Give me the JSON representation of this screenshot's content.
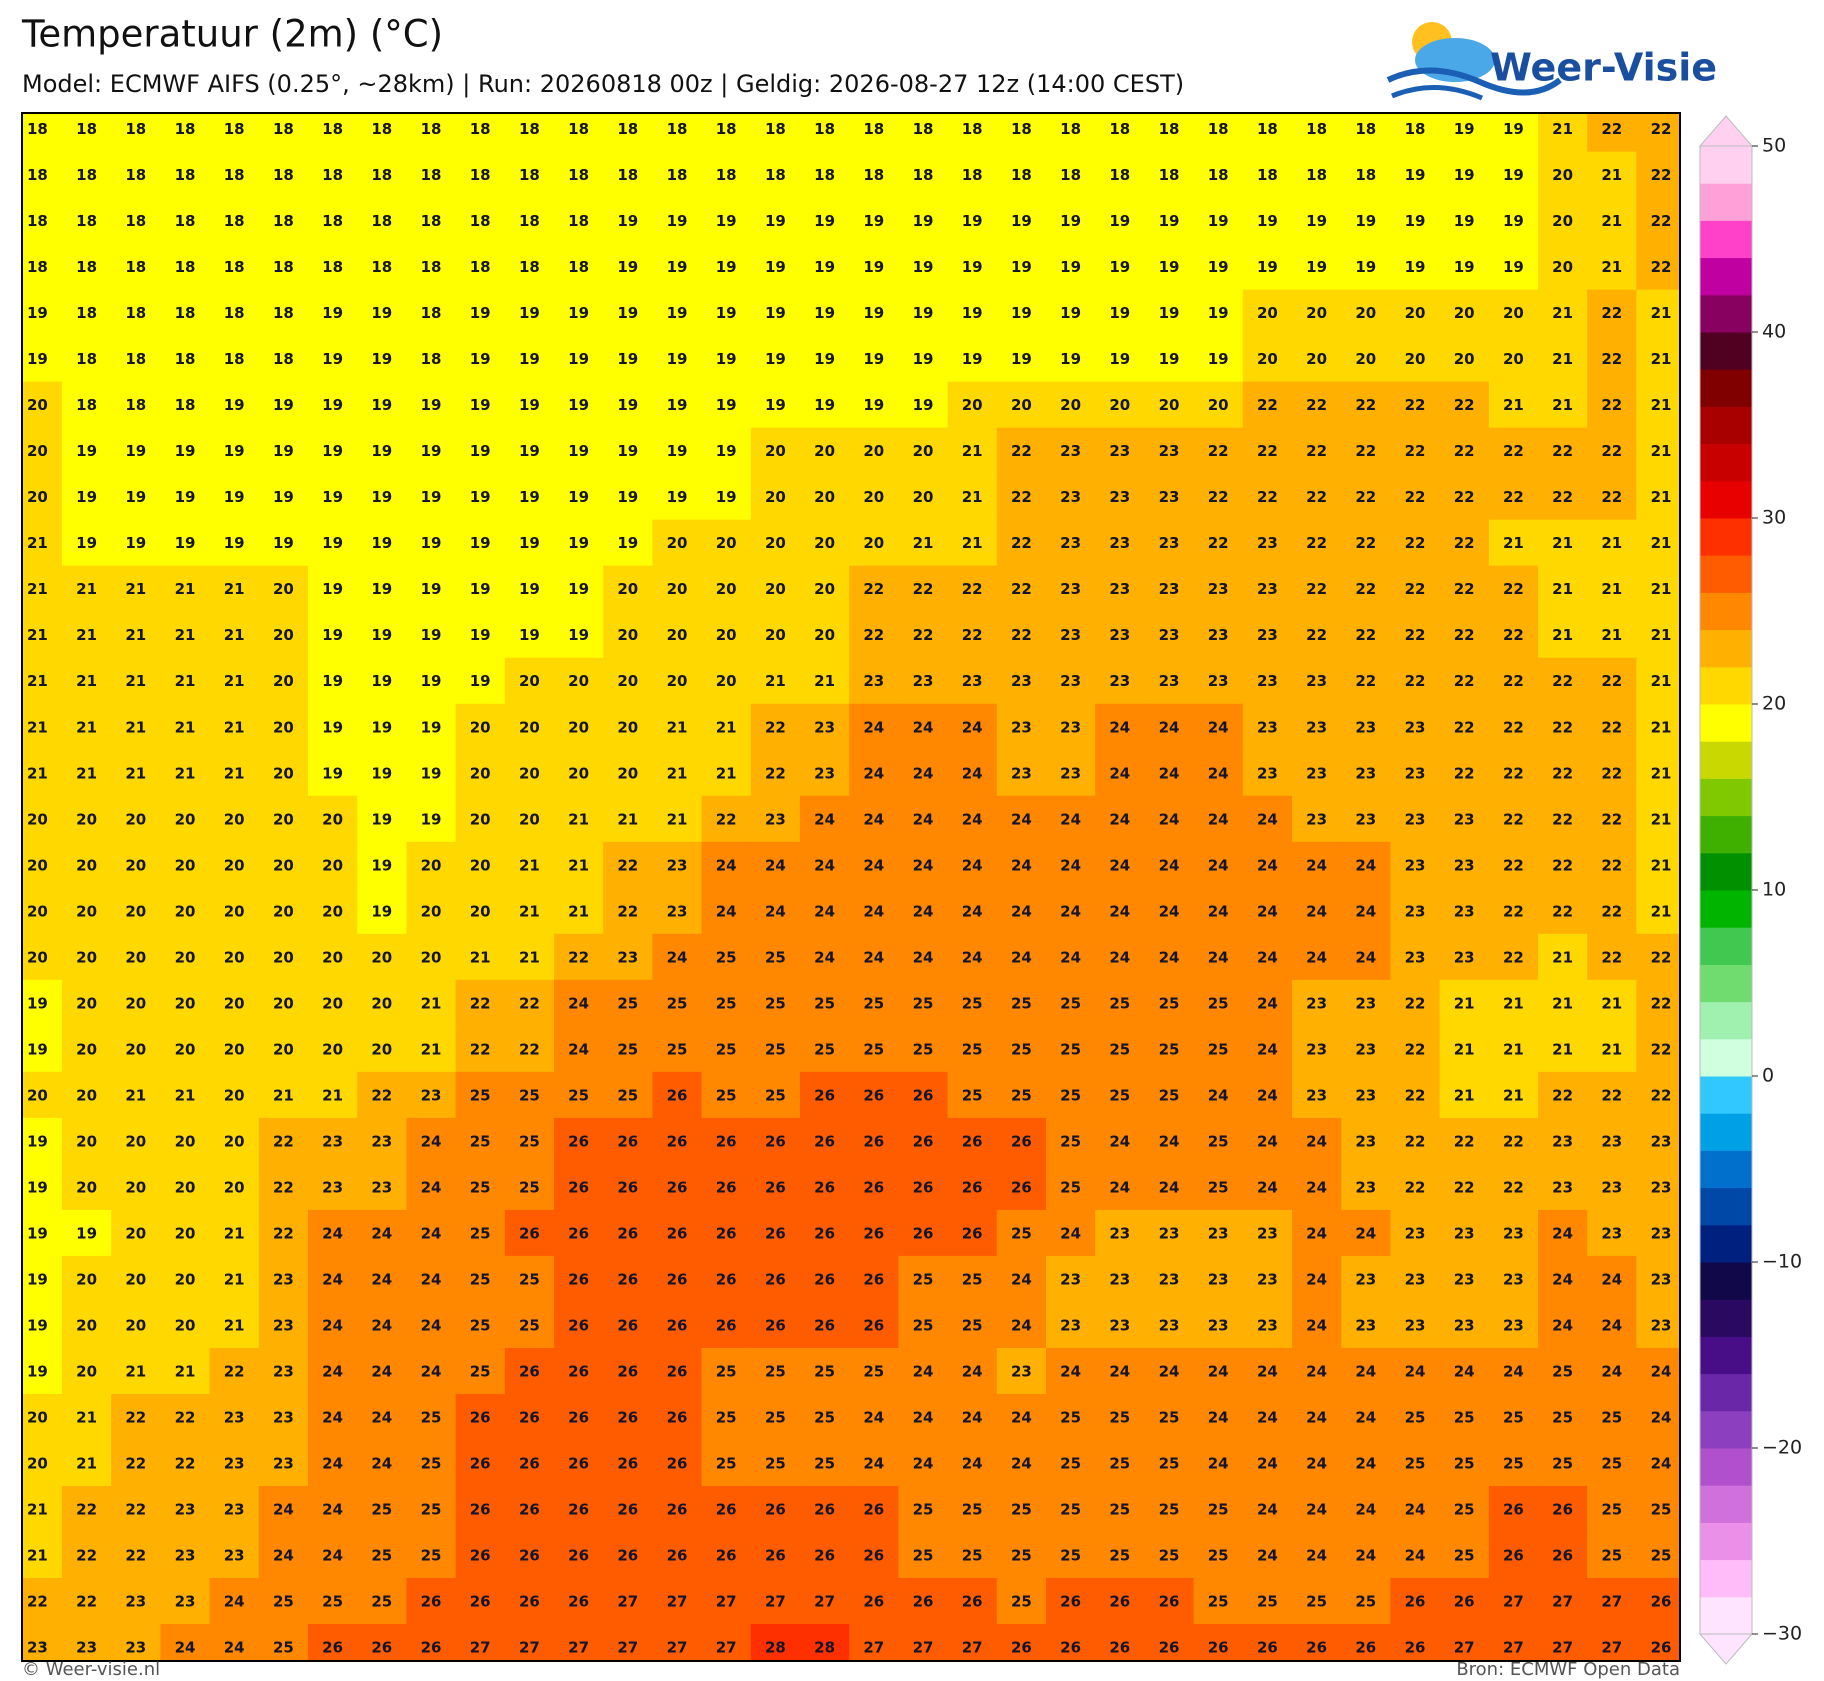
{
  "title": "Temperatuur (2m) (°C)",
  "subtitle": "Model: ECMWF AIFS (0.25°, ~28km)  |  Run: 20260818 00z  |  Geldig: 2026-08-27 12z (14:00 CEST)",
  "logo": "Weer-Visie",
  "footer_left": "© Weer-visie.nl",
  "footer_right": "Bron: ECMWF Open Data",
  "map": {
    "rows": [
      [
        18,
        18,
        18,
        18,
        18,
        18,
        18,
        18,
        18,
        18,
        18,
        18,
        18,
        18,
        18,
        18,
        18,
        18,
        18,
        18,
        18,
        18,
        18,
        18,
        18,
        18,
        18,
        18,
        18,
        19,
        19,
        21,
        22,
        22
      ],
      [
        18,
        18,
        18,
        18,
        18,
        18,
        18,
        18,
        18,
        18,
        18,
        18,
        18,
        18,
        18,
        18,
        18,
        18,
        18,
        18,
        18,
        18,
        18,
        18,
        18,
        18,
        18,
        18,
        19,
        19,
        19,
        20,
        21,
        22
      ],
      [
        18,
        18,
        18,
        18,
        18,
        18,
        18,
        18,
        18,
        18,
        18,
        18,
        19,
        19,
        19,
        19,
        19,
        19,
        19,
        19,
        19,
        19,
        19,
        19,
        19,
        19,
        19,
        19,
        19,
        19,
        19,
        20,
        21,
        22
      ],
      [
        18,
        18,
        18,
        18,
        18,
        18,
        18,
        18,
        18,
        18,
        18,
        18,
        19,
        19,
        19,
        19,
        19,
        19,
        19,
        19,
        19,
        19,
        19,
        19,
        19,
        19,
        19,
        19,
        19,
        19,
        19,
        20,
        21,
        22
      ],
      [
        19,
        18,
        18,
        18,
        18,
        18,
        19,
        19,
        18,
        19,
        19,
        19,
        19,
        19,
        19,
        19,
        19,
        19,
        19,
        19,
        19,
        19,
        19,
        19,
        19,
        20,
        20,
        20,
        20,
        20,
        20,
        21,
        22,
        21
      ],
      [
        19,
        18,
        18,
        18,
        18,
        18,
        19,
        19,
        18,
        19,
        19,
        19,
        19,
        19,
        19,
        19,
        19,
        19,
        19,
        19,
        19,
        19,
        19,
        19,
        19,
        20,
        20,
        20,
        20,
        20,
        20,
        21,
        22,
        21
      ],
      [
        20,
        18,
        18,
        18,
        19,
        19,
        19,
        19,
        19,
        19,
        19,
        19,
        19,
        19,
        19,
        19,
        19,
        19,
        19,
        20,
        20,
        20,
        20,
        20,
        20,
        22,
        22,
        22,
        22,
        22,
        21,
        21,
        22,
        21
      ],
      [
        20,
        19,
        19,
        19,
        19,
        19,
        19,
        19,
        19,
        19,
        19,
        19,
        19,
        19,
        19,
        20,
        20,
        20,
        20,
        21,
        22,
        23,
        23,
        23,
        22,
        22,
        22,
        22,
        22,
        22,
        22,
        22,
        22,
        21
      ],
      [
        20,
        19,
        19,
        19,
        19,
        19,
        19,
        19,
        19,
        19,
        19,
        19,
        19,
        19,
        19,
        20,
        20,
        20,
        20,
        21,
        22,
        23,
        23,
        23,
        22,
        22,
        22,
        22,
        22,
        22,
        22,
        22,
        22,
        21
      ],
      [
        21,
        19,
        19,
        19,
        19,
        19,
        19,
        19,
        19,
        19,
        19,
        19,
        19,
        20,
        20,
        20,
        20,
        20,
        21,
        21,
        22,
        23,
        23,
        23,
        22,
        23,
        22,
        22,
        22,
        22,
        21,
        21,
        21,
        21
      ],
      [
        21,
        21,
        21,
        21,
        21,
        20,
        19,
        19,
        19,
        19,
        19,
        19,
        20,
        20,
        20,
        20,
        20,
        22,
        22,
        22,
        22,
        23,
        23,
        23,
        23,
        23,
        22,
        22,
        22,
        22,
        22,
        21,
        21,
        21
      ],
      [
        21,
        21,
        21,
        21,
        21,
        20,
        19,
        19,
        19,
        19,
        19,
        19,
        20,
        20,
        20,
        20,
        20,
        22,
        22,
        22,
        22,
        23,
        23,
        23,
        23,
        23,
        22,
        22,
        22,
        22,
        22,
        21,
        21,
        21
      ],
      [
        21,
        21,
        21,
        21,
        21,
        20,
        19,
        19,
        19,
        19,
        20,
        20,
        20,
        20,
        20,
        21,
        21,
        23,
        23,
        23,
        23,
        23,
        23,
        23,
        23,
        23,
        23,
        22,
        22,
        22,
        22,
        22,
        22,
        21
      ],
      [
        21,
        21,
        21,
        21,
        21,
        20,
        19,
        19,
        19,
        20,
        20,
        20,
        20,
        21,
        21,
        22,
        23,
        24,
        24,
        24,
        23,
        23,
        24,
        24,
        24,
        23,
        23,
        23,
        23,
        22,
        22,
        22,
        22,
        21
      ],
      [
        21,
        21,
        21,
        21,
        21,
        20,
        19,
        19,
        19,
        20,
        20,
        20,
        20,
        21,
        21,
        22,
        23,
        24,
        24,
        24,
        23,
        23,
        24,
        24,
        24,
        23,
        23,
        23,
        23,
        22,
        22,
        22,
        22,
        21
      ],
      [
        20,
        20,
        20,
        20,
        20,
        20,
        20,
        19,
        19,
        20,
        20,
        21,
        21,
        21,
        22,
        23,
        24,
        24,
        24,
        24,
        24,
        24,
        24,
        24,
        24,
        24,
        23,
        23,
        23,
        23,
        22,
        22,
        22,
        21
      ],
      [
        20,
        20,
        20,
        20,
        20,
        20,
        20,
        19,
        20,
        20,
        21,
        21,
        22,
        23,
        24,
        24,
        24,
        24,
        24,
        24,
        24,
        24,
        24,
        24,
        24,
        24,
        24,
        24,
        23,
        23,
        22,
        22,
        22,
        21
      ],
      [
        20,
        20,
        20,
        20,
        20,
        20,
        20,
        19,
        20,
        20,
        21,
        21,
        22,
        23,
        24,
        24,
        24,
        24,
        24,
        24,
        24,
        24,
        24,
        24,
        24,
        24,
        24,
        24,
        23,
        23,
        22,
        22,
        22,
        21
      ],
      [
        20,
        20,
        20,
        20,
        20,
        20,
        20,
        20,
        20,
        21,
        21,
        22,
        23,
        24,
        25,
        25,
        24,
        24,
        24,
        24,
        24,
        24,
        24,
        24,
        24,
        24,
        24,
        24,
        23,
        23,
        22,
        21,
        22,
        22
      ],
      [
        19,
        20,
        20,
        20,
        20,
        20,
        20,
        20,
        21,
        22,
        22,
        24,
        25,
        25,
        25,
        25,
        25,
        25,
        25,
        25,
        25,
        25,
        25,
        25,
        25,
        24,
        23,
        23,
        22,
        21,
        21,
        21,
        21,
        22
      ],
      [
        19,
        20,
        20,
        20,
        20,
        20,
        20,
        20,
        21,
        22,
        22,
        24,
        25,
        25,
        25,
        25,
        25,
        25,
        25,
        25,
        25,
        25,
        25,
        25,
        25,
        24,
        23,
        23,
        22,
        21,
        21,
        21,
        21,
        22
      ],
      [
        20,
        20,
        21,
        21,
        20,
        21,
        21,
        22,
        23,
        25,
        25,
        25,
        25,
        26,
        25,
        25,
        26,
        26,
        26,
        25,
        25,
        25,
        25,
        25,
        24,
        24,
        23,
        23,
        22,
        21,
        21,
        22,
        22,
        22
      ],
      [
        19,
        20,
        20,
        20,
        20,
        22,
        23,
        23,
        24,
        25,
        25,
        26,
        26,
        26,
        26,
        26,
        26,
        26,
        26,
        26,
        26,
        25,
        24,
        24,
        25,
        24,
        24,
        23,
        22,
        22,
        22,
        23,
        23,
        23
      ],
      [
        19,
        20,
        20,
        20,
        20,
        22,
        23,
        23,
        24,
        25,
        25,
        26,
        26,
        26,
        26,
        26,
        26,
        26,
        26,
        26,
        26,
        25,
        24,
        24,
        25,
        24,
        24,
        23,
        22,
        22,
        22,
        23,
        23,
        23
      ],
      [
        19,
        19,
        20,
        20,
        21,
        22,
        24,
        24,
        24,
        25,
        26,
        26,
        26,
        26,
        26,
        26,
        26,
        26,
        26,
        26,
        25,
        24,
        23,
        23,
        23,
        23,
        24,
        24,
        23,
        23,
        23,
        24,
        23,
        23
      ],
      [
        19,
        20,
        20,
        20,
        21,
        23,
        24,
        24,
        24,
        25,
        25,
        26,
        26,
        26,
        26,
        26,
        26,
        26,
        25,
        25,
        24,
        23,
        23,
        23,
        23,
        23,
        24,
        23,
        23,
        23,
        23,
        24,
        24,
        23
      ],
      [
        19,
        20,
        20,
        20,
        21,
        23,
        24,
        24,
        24,
        25,
        25,
        26,
        26,
        26,
        26,
        26,
        26,
        26,
        25,
        25,
        24,
        23,
        23,
        23,
        23,
        23,
        24,
        23,
        23,
        23,
        23,
        24,
        24,
        23
      ],
      [
        19,
        20,
        21,
        21,
        22,
        23,
        24,
        24,
        24,
        25,
        26,
        26,
        26,
        26,
        25,
        25,
        25,
        25,
        24,
        24,
        23,
        24,
        24,
        24,
        24,
        24,
        24,
        24,
        24,
        24,
        24,
        25,
        24,
        24
      ],
      [
        20,
        21,
        22,
        22,
        23,
        23,
        24,
        24,
        25,
        26,
        26,
        26,
        26,
        26,
        25,
        25,
        25,
        24,
        24,
        24,
        24,
        25,
        25,
        25,
        24,
        24,
        24,
        24,
        25,
        25,
        25,
        25,
        25,
        24
      ],
      [
        20,
        21,
        22,
        22,
        23,
        23,
        24,
        24,
        25,
        26,
        26,
        26,
        26,
        26,
        25,
        25,
        25,
        24,
        24,
        24,
        24,
        25,
        25,
        25,
        24,
        24,
        24,
        24,
        25,
        25,
        25,
        25,
        25,
        24
      ],
      [
        21,
        22,
        22,
        23,
        23,
        24,
        24,
        25,
        25,
        26,
        26,
        26,
        26,
        26,
        26,
        26,
        26,
        26,
        25,
        25,
        25,
        25,
        25,
        25,
        25,
        24,
        24,
        24,
        24,
        25,
        26,
        26,
        25,
        25
      ],
      [
        21,
        22,
        22,
        23,
        23,
        24,
        24,
        25,
        25,
        26,
        26,
        26,
        26,
        26,
        26,
        26,
        26,
        26,
        25,
        25,
        25,
        25,
        25,
        25,
        25,
        24,
        24,
        24,
        24,
        25,
        26,
        26,
        25,
        25
      ],
      [
        22,
        22,
        23,
        23,
        24,
        25,
        25,
        25,
        26,
        26,
        26,
        26,
        27,
        27,
        27,
        27,
        27,
        26,
        26,
        26,
        25,
        26,
        26,
        26,
        25,
        25,
        25,
        25,
        26,
        26,
        27,
        27,
        27,
        26
      ],
      [
        23,
        23,
        23,
        24,
        24,
        25,
        26,
        26,
        26,
        27,
        27,
        27,
        27,
        27,
        27,
        28,
        28,
        27,
        27,
        27,
        26,
        26,
        26,
        26,
        26,
        26,
        26,
        26,
        26,
        27,
        27,
        27,
        27,
        26
      ]
    ]
  },
  "colorbar": {
    "lim": [
      -30,
      50
    ],
    "ticks": [
      50,
      40,
      30,
      20,
      10,
      0,
      {
        "value": -10,
        "label": "−10"
      },
      {
        "value": -20,
        "label": "−20"
      },
      {
        "value": -30,
        "label": "−30"
      }
    ],
    "colors": [
      "#ffe4ff",
      "#ffbcf8",
      "#ea90e8",
      "#d070dc",
      "#b050cc",
      "#8c40c0",
      "#6a28a8",
      "#480e88",
      "#2a0a60",
      "#100848",
      "#002080",
      "#0048a8",
      "#0070cc",
      "#00a0e6",
      "#30c8ff",
      "#d0ffe0",
      "#a0f0b0",
      "#70dc70",
      "#40c850",
      "#00b400",
      "#009000",
      "#40b000",
      "#80c800",
      "#c8d800",
      "#ffff00",
      "#ffd800",
      "#ffb000",
      "#ff8800",
      "#ff5c00",
      "#ff3000",
      "#e80000",
      "#c80000",
      "#a80000",
      "#800000",
      "#500020",
      "#880060",
      "#c000a0",
      "#ff40c8",
      "#ffa0d8",
      "#ffd0f0"
    ]
  }
}
